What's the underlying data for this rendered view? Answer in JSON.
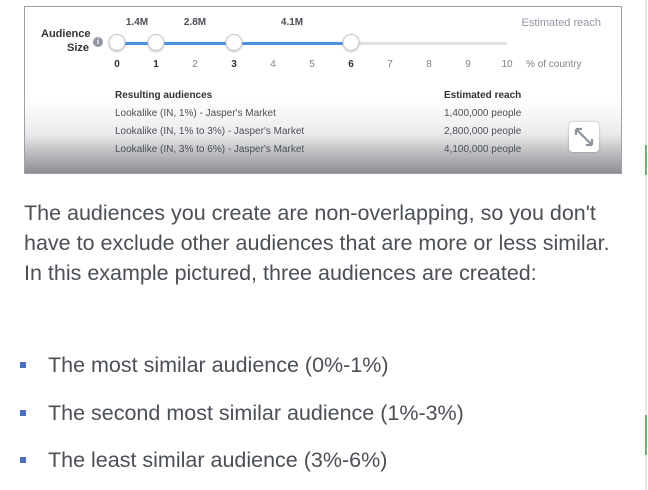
{
  "slider": {
    "audience_size_label": "Audience Size",
    "estimated_reach_header": "Estimated reach",
    "top_values": [
      "1.4M",
      "2.8M",
      "4.1M"
    ],
    "ticks": [
      "0",
      "1",
      "2",
      "3",
      "4",
      "5",
      "6",
      "7",
      "8",
      "9",
      "10"
    ],
    "bold_ticks": [
      "0",
      "1",
      "3",
      "6"
    ],
    "tick_unit": "% of country",
    "knob_positions": [
      0,
      1,
      3,
      6
    ],
    "range_max": 10,
    "accent_color": "#4a90e2"
  },
  "results": {
    "header": "Resulting audiences",
    "reach_header": "Estimated reach",
    "rows": [
      {
        "name": "Lookalike (IN, 1%) - Jasper's Market",
        "reach": "1,400,000 people"
      },
      {
        "name": "Lookalike (IN, 1% to 3%) - Jasper's Market",
        "reach": "2,800,000 people"
      },
      {
        "name": "Lookalike (IN, 3% to 6%) - Jasper's Market",
        "reach": "4,100,000 people"
      }
    ]
  },
  "article": {
    "paragraph": "The audiences you create are non-overlapping, so you don't have to exclude other audiences that are more or less similar. In this example pictured, three audiences are created:",
    "bullets": [
      "The most similar audience (0%-1%)",
      "The second most similar audience (1%-3%)",
      "The least similar audience (3%-6%)"
    ],
    "bullet_color": "#4a6fc0"
  }
}
